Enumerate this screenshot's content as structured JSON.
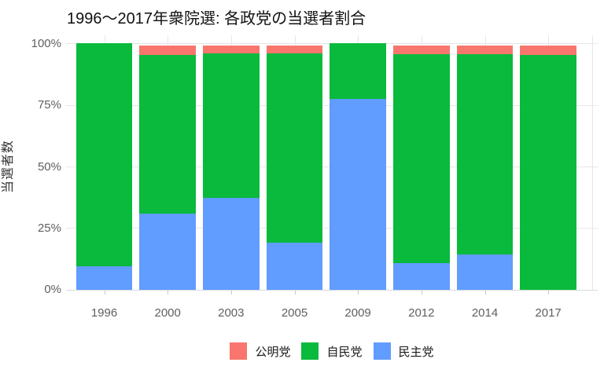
{
  "title": "1996〜2017年衆院選: 各政党の当選者割合",
  "chart_data": {
    "type": "bar",
    "stacked": true,
    "title": "1996〜2017年衆院選: 各政党の当選者割合",
    "xlabel": "",
    "ylabel": "当選者数",
    "categories": [
      "1996",
      "2000",
      "2003",
      "2005",
      "2009",
      "2012",
      "2014",
      "2017"
    ],
    "series": [
      {
        "name": "民主党",
        "color": "#619CFF",
        "values": [
          9.5,
          30.8,
          37.2,
          19.1,
          77.3,
          10.6,
          14.3,
          0
        ]
      },
      {
        "name": "自民党",
        "color": "#0ABA3C",
        "values": [
          90.5,
          64.6,
          58.8,
          76.9,
          22.7,
          85.1,
          81.3,
          95.3
        ]
      },
      {
        "name": "公明党",
        "color": "#F8766D",
        "values": [
          0,
          3.6,
          3.2,
          3.2,
          0,
          3.6,
          3.6,
          3.9
        ]
      }
    ],
    "legend_order": [
      "公明党",
      "自民党",
      "民主党"
    ],
    "legend_position": "bottom",
    "y_ticks": [
      {
        "value": 0,
        "label": "0%"
      },
      {
        "value": 25,
        "label": "25%"
      },
      {
        "value": 50,
        "label": "50%"
      },
      {
        "value": 75,
        "label": "75%"
      },
      {
        "value": 100,
        "label": "100%"
      }
    ],
    "ylim": [
      0,
      100
    ],
    "grid": true
  },
  "colors": {
    "komeito": "#F8766D",
    "ldp": "#0ABA3C",
    "dpj": "#619CFF",
    "gridline": "#e7e7e7",
    "axis_text": "#5f5f5f",
    "background": "#ffffff"
  }
}
